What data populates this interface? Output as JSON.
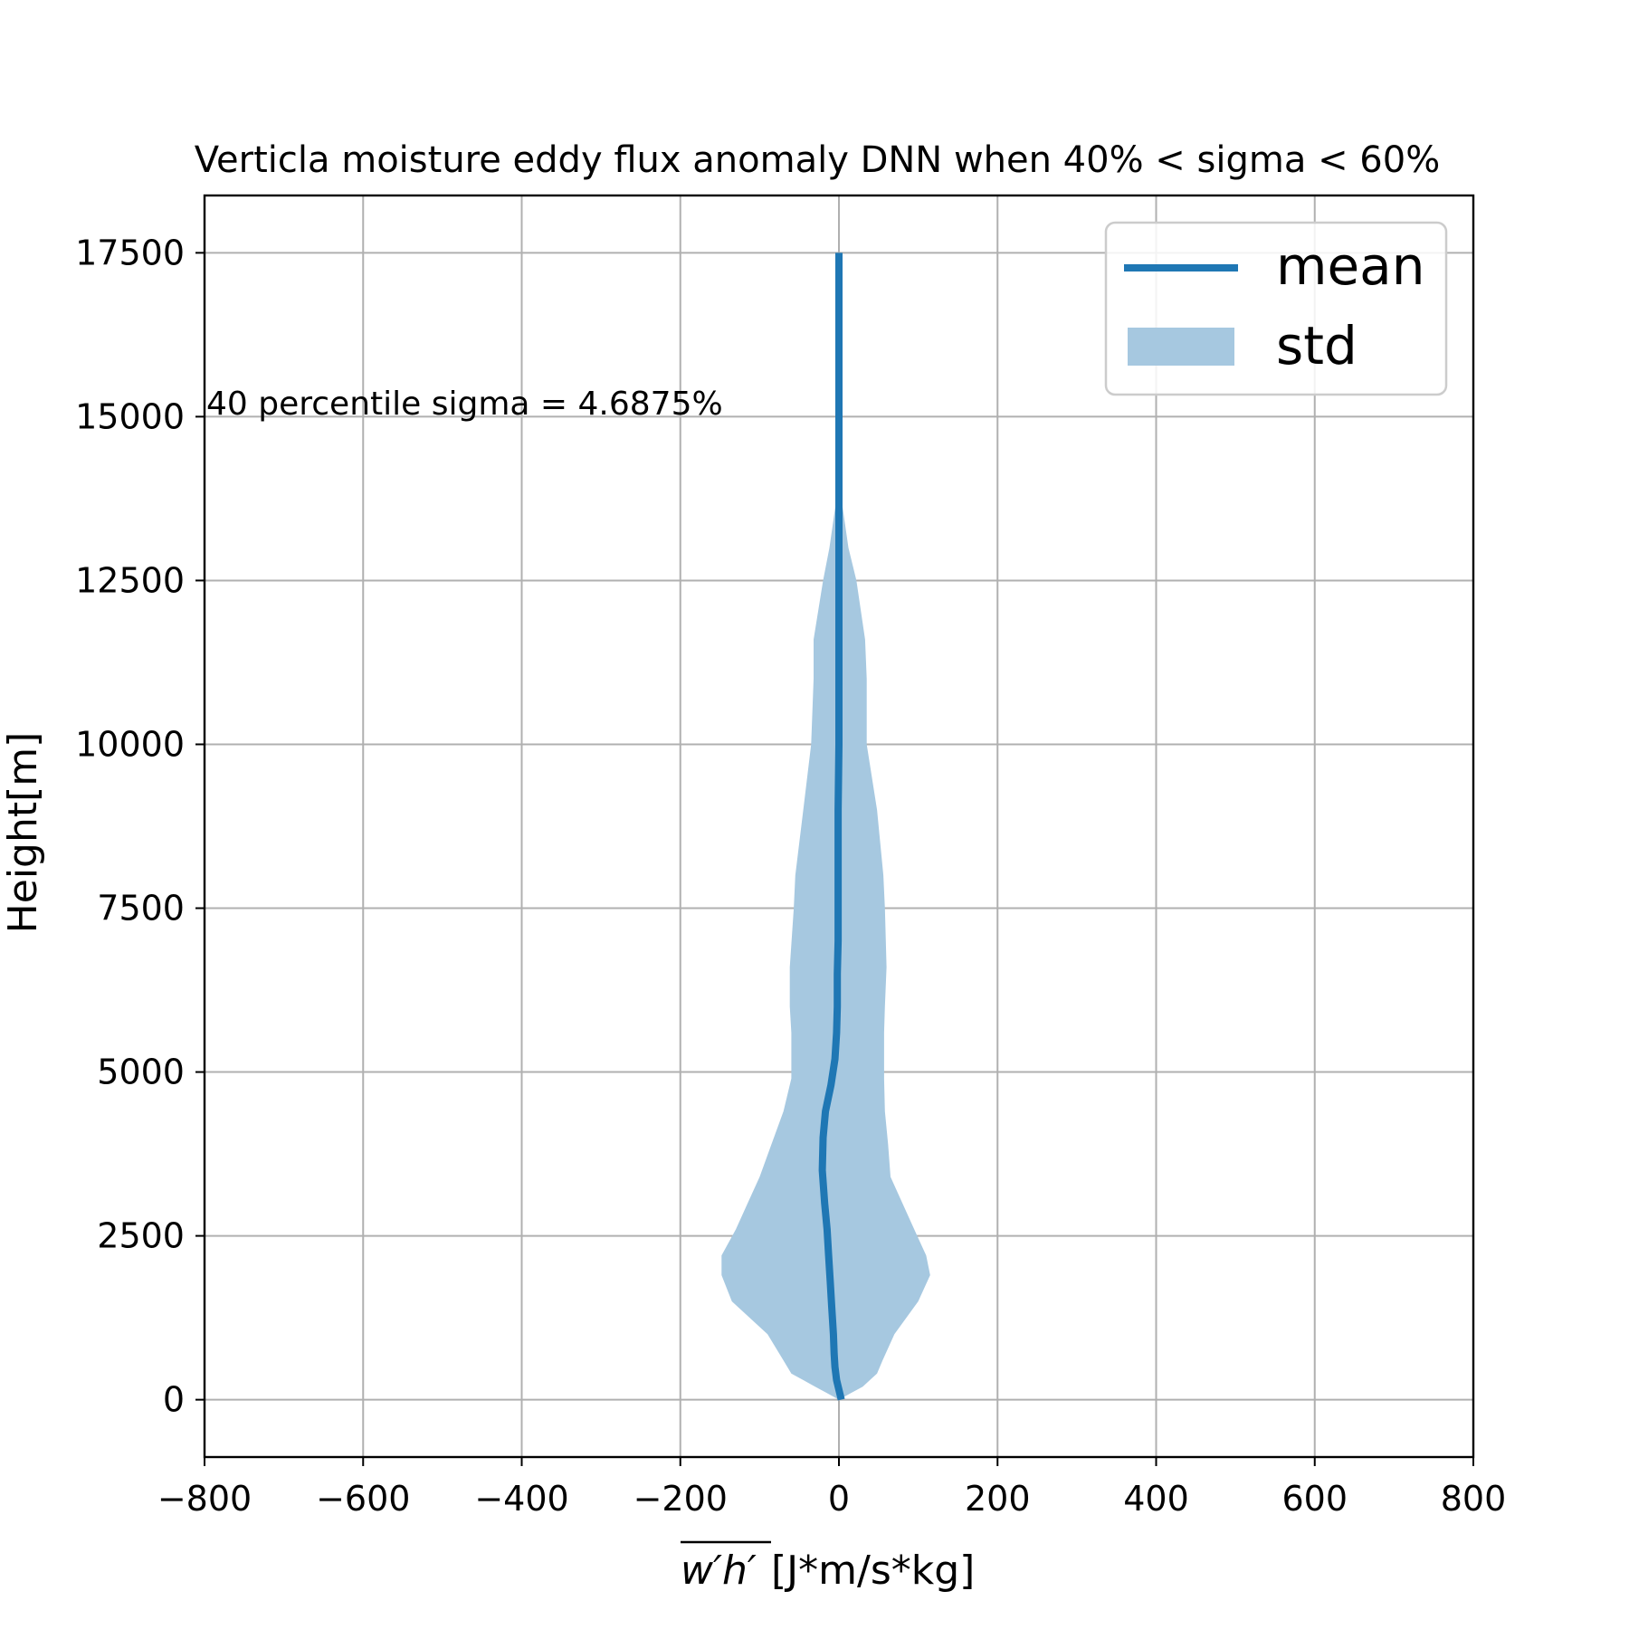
{
  "chart_data": {
    "type": "line",
    "title": "Verticla moisture eddy flux anomaly DNN when 40% < sigma < 60%",
    "xlabel_overline": "w′h′",
    "xlabel_unit": "[J*m/s*kg]",
    "ylabel": "Height[m]",
    "xlim": [
      -800,
      800
    ],
    "ylim": [
      -875,
      18375
    ],
    "xticks": [
      -800,
      -600,
      -400,
      -200,
      0,
      200,
      400,
      600,
      800
    ],
    "xtick_labels": [
      "−800",
      "−600",
      "−400",
      "−200",
      "0",
      "200",
      "400",
      "600",
      "800"
    ],
    "yticks": [
      0,
      2500,
      5000,
      7500,
      10000,
      12500,
      15000,
      17500
    ],
    "ytick_labels": [
      "0",
      "2500",
      "5000",
      "7500",
      "10000",
      "12500",
      "15000",
      "17500"
    ],
    "grid": true,
    "legend": {
      "position": "top-right",
      "entries": [
        "mean",
        "std"
      ]
    },
    "annotation": "40 percentile sigma = 4.6875%",
    "series": [
      {
        "name": "mean",
        "kind": "line",
        "color": "#1f77b4",
        "x": [
          3,
          1,
          -3,
          -5,
          -6,
          -7,
          -9,
          -11,
          -13,
          -15,
          -18,
          -21,
          -20,
          -17,
          -10,
          -5,
          -3,
          -2,
          -2,
          -1,
          -1,
          -1,
          0,
          0,
          0,
          0,
          0,
          0,
          0,
          0
        ],
        "y": [
          0,
          100,
          300,
          500,
          700,
          1000,
          1400,
          1800,
          2200,
          2600,
          3000,
          3500,
          4000,
          4400,
          4800,
          5200,
          5600,
          6000,
          6500,
          7000,
          8000,
          9000,
          10000,
          11000,
          12000,
          13000,
          14000,
          15000,
          16000,
          17500
        ]
      },
      {
        "name": "std",
        "kind": "band",
        "color": "#a6c8e0",
        "y": [
          0,
          100,
          200,
          400,
          600,
          1000,
          1500,
          1900,
          2200,
          2600,
          3000,
          3400,
          3900,
          4400,
          4900,
          5600,
          6000,
          6600,
          7500,
          8000,
          9000,
          10000,
          11000,
          11600,
          12500,
          13000,
          13500,
          14000
        ],
        "lower": [
          0,
          -15,
          -30,
          -60,
          -70,
          -90,
          -135,
          -148,
          -148,
          -130,
          -115,
          -100,
          -85,
          -70,
          -60,
          -60,
          -62,
          -62,
          -57,
          -55,
          -45,
          -35,
          -32,
          -32,
          -20,
          -12,
          -6,
          0
        ],
        "upper": [
          0,
          15,
          30,
          48,
          55,
          70,
          100,
          115,
          110,
          95,
          80,
          65,
          62,
          58,
          57,
          57,
          58,
          60,
          58,
          56,
          48,
          35,
          35,
          33,
          22,
          12,
          6,
          0
        ]
      }
    ]
  }
}
